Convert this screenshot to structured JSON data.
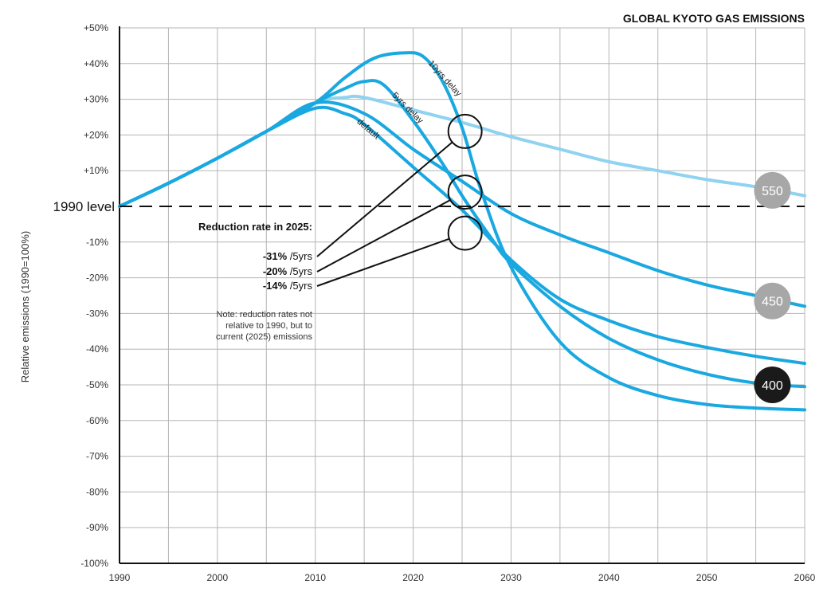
{
  "chart_data": {
    "type": "line",
    "title": "GLOBAL KYOTO GAS EMISSIONS",
    "ylabel": "Relative emissions (1990=100%)",
    "xlim": [
      1990,
      2060
    ],
    "ylim": [
      -100,
      50
    ],
    "x_ticks": [
      "1990",
      "2000",
      "2010",
      "2020",
      "2030",
      "2040",
      "2050",
      "2060"
    ],
    "y_ticks": [
      {
        "v": 50,
        "label": "+50%"
      },
      {
        "v": 40,
        "label": "+40%"
      },
      {
        "v": 30,
        "label": "+30%"
      },
      {
        "v": 20,
        "label": "+20%"
      },
      {
        "v": 10,
        "label": "+10%"
      },
      {
        "v": 0,
        "label": "1990 level"
      },
      {
        "v": -10,
        "label": "-10%"
      },
      {
        "v": -20,
        "label": "-20%"
      },
      {
        "v": -30,
        "label": "-30%"
      },
      {
        "v": -40,
        "label": "-40%"
      },
      {
        "v": -50,
        "label": "-50%"
      },
      {
        "v": -60,
        "label": "-60%"
      },
      {
        "v": -70,
        "label": "-70%"
      },
      {
        "v": -80,
        "label": "-80%"
      },
      {
        "v": -90,
        "label": "-90%"
      },
      {
        "v": -100,
        "label": "-100%"
      }
    ],
    "grid": true,
    "reference_line": {
      "y": 0,
      "label": "1990 level",
      "style": "dashed"
    },
    "series": [
      {
        "label": "550",
        "color": "#8fd3f0",
        "points": [
          [
            1990,
            0
          ],
          [
            1995,
            6.5
          ],
          [
            2000,
            13.5
          ],
          [
            2005,
            21
          ],
          [
            2010,
            29
          ],
          [
            2013,
            30.5
          ],
          [
            2015,
            30.5
          ],
          [
            2020,
            27
          ],
          [
            2025,
            23.5
          ],
          [
            2030,
            19.5
          ],
          [
            2035,
            16
          ],
          [
            2040,
            12.5
          ],
          [
            2045,
            10
          ],
          [
            2050,
            7.5
          ],
          [
            2055,
            5.5
          ],
          [
            2060,
            3
          ]
        ]
      },
      {
        "label": "450 (default)",
        "color": "#19a8e0",
        "points": [
          [
            1990,
            0
          ],
          [
            1995,
            6.5
          ],
          [
            2000,
            13.5
          ],
          [
            2005,
            21
          ],
          [
            2010,
            29
          ],
          [
            2015,
            26
          ],
          [
            2020,
            16
          ],
          [
            2025,
            7
          ],
          [
            2030,
            -2
          ],
          [
            2035,
            -8
          ],
          [
            2040,
            -13
          ],
          [
            2045,
            -18
          ],
          [
            2050,
            -22
          ],
          [
            2055,
            -25
          ],
          [
            2060,
            -28
          ]
        ]
      },
      {
        "label": "default",
        "color": "#19a8e0",
        "points": [
          [
            1990,
            0
          ],
          [
            1995,
            6.5
          ],
          [
            2000,
            13.5
          ],
          [
            2005,
            21
          ],
          [
            2010,
            27.5
          ],
          [
            2013,
            26
          ],
          [
            2015,
            23
          ],
          [
            2020,
            11
          ],
          [
            2025,
            -1
          ],
          [
            2030,
            -15
          ],
          [
            2035,
            -26
          ],
          [
            2040,
            -32
          ],
          [
            2045,
            -36.5
          ],
          [
            2050,
            -39.5
          ],
          [
            2055,
            -42
          ],
          [
            2060,
            -44
          ]
        ]
      },
      {
        "label": "5yrs delay",
        "color": "#19a8e0",
        "points": [
          [
            1990,
            0
          ],
          [
            1995,
            6.5
          ],
          [
            2000,
            13.5
          ],
          [
            2005,
            21
          ],
          [
            2010,
            29
          ],
          [
            2013,
            33
          ],
          [
            2015,
            35
          ],
          [
            2017,
            34
          ],
          [
            2020,
            24
          ],
          [
            2023,
            12
          ],
          [
            2025,
            3
          ],
          [
            2028,
            -9
          ],
          [
            2030,
            -16
          ],
          [
            2035,
            -28
          ],
          [
            2040,
            -37
          ],
          [
            2045,
            -43
          ],
          [
            2050,
            -47
          ],
          [
            2055,
            -49.5
          ],
          [
            2060,
            -50.5
          ]
        ]
      },
      {
        "label": "10yrs delay",
        "color": "#19a8e0",
        "points": [
          [
            1990,
            0
          ],
          [
            1995,
            6.5
          ],
          [
            2000,
            13.5
          ],
          [
            2005,
            21
          ],
          [
            2010,
            29
          ],
          [
            2013,
            36
          ],
          [
            2016,
            41.5
          ],
          [
            2019,
            43
          ],
          [
            2021,
            42
          ],
          [
            2023,
            35
          ],
          [
            2025,
            22
          ],
          [
            2027,
            4
          ],
          [
            2030,
            -17
          ],
          [
            2035,
            -38
          ],
          [
            2040,
            -48
          ],
          [
            2045,
            -53
          ],
          [
            2050,
            -55.5
          ],
          [
            2055,
            -56.5
          ],
          [
            2060,
            -57
          ]
        ]
      }
    ],
    "curve_labels": [
      {
        "text": "default",
        "x": 2014.2,
        "y": 23.5,
        "rotate": 40
      },
      {
        "text": "5yrs delay",
        "x": 2017.8,
        "y": 31,
        "rotate": 45
      },
      {
        "text": "10yrs delay",
        "x": 2021.5,
        "y": 40,
        "rotate": 48
      }
    ],
    "scenario_badges": [
      {
        "text": "550",
        "x": 2056.7,
        "y": 4.5,
        "fill": "#a7a7a7"
      },
      {
        "text": "450",
        "x": 2056.7,
        "y": -26.5,
        "fill": "#a7a7a7"
      },
      {
        "text": "400",
        "x": 2056.7,
        "y": -50,
        "fill": "#1a1a1a"
      }
    ],
    "annotation": {
      "heading": "Reduction rate in 2025:",
      "rates": [
        {
          "value": "-31%",
          "unit": " /5yrs",
          "target": [
            2025.3,
            21
          ]
        },
        {
          "value": "-20%",
          "unit": " /5yrs",
          "target": [
            2025.3,
            4
          ]
        },
        {
          "value": "-14%",
          "unit": " /5yrs",
          "target": [
            2025.3,
            -7.5
          ]
        }
      ],
      "note": [
        "Note: reduction rates not",
        "relative to 1990, but to",
        "current (2025) emissions"
      ]
    }
  }
}
